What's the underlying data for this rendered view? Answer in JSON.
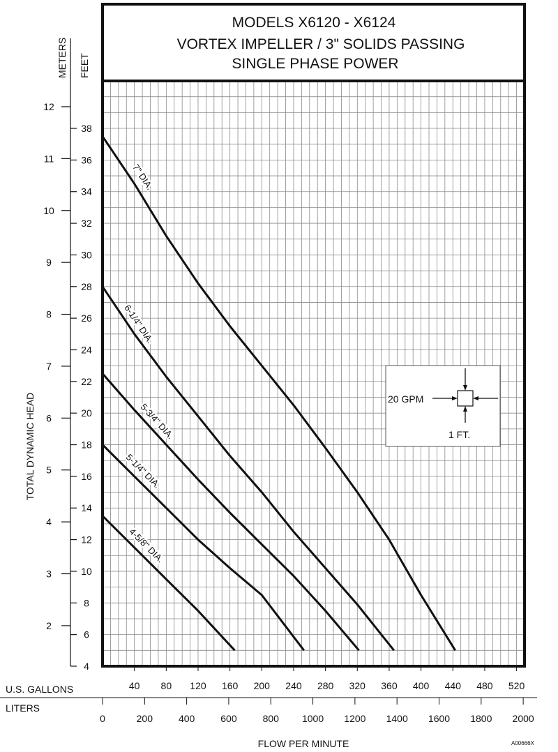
{
  "chart_data": {
    "type": "line",
    "title_lines": [
      "MODELS X6120 - X6124",
      "VORTEX IMPELLER / 3\" SOLIDS PASSING",
      "SINGLE PHASE POWER"
    ],
    "xlabel": "FLOW PER MINUTE",
    "ylabel": "TOTAL DYNAMIC HEAD",
    "x_units": {
      "primary": "U.S. GALLONS",
      "secondary": "LITERS"
    },
    "y_units": {
      "primary": "FEET",
      "secondary": "METERS"
    },
    "xlim": [
      0,
      530
    ],
    "ylim": [
      4,
      41
    ],
    "x_ticks": [
      40,
      80,
      120,
      160,
      200,
      240,
      280,
      320,
      360,
      400,
      440,
      480,
      520
    ],
    "x2_ticks": [
      0,
      200,
      400,
      600,
      800,
      1000,
      1200,
      1400,
      1600,
      1800,
      2000
    ],
    "y_ticks": [
      4,
      6,
      8,
      10,
      12,
      14,
      16,
      18,
      20,
      22,
      24,
      26,
      28,
      30,
      32,
      34,
      36,
      38
    ],
    "y2_ticks": [
      2,
      3,
      4,
      5,
      6,
      7,
      8,
      9,
      10,
      11,
      12
    ],
    "grid": true,
    "series": [
      {
        "name": "7\" DIA.",
        "x": [
          0,
          40,
          80,
          120,
          160,
          200,
          240,
          280,
          320,
          360,
          400,
          443
        ],
        "y": [
          37.5,
          34.5,
          31.2,
          28.2,
          25.5,
          23,
          20.5,
          17.8,
          15,
          12,
          8.5,
          5
        ]
      },
      {
        "name": "6-1/4\" DIA.",
        "x": [
          0,
          40,
          80,
          120,
          160,
          200,
          240,
          280,
          320,
          366
        ],
        "y": [
          28,
          25,
          22.3,
          19.8,
          17.3,
          15,
          12.5,
          10.2,
          7.9,
          5
        ]
      },
      {
        "name": "5-3/4\" DIA.",
        "x": [
          0,
          40,
          80,
          120,
          160,
          200,
          240,
          280,
          322
        ],
        "y": [
          22.5,
          20.2,
          18,
          15.8,
          13.7,
          11.7,
          9.7,
          7.5,
          5
        ]
      },
      {
        "name": "5-1/4\" DIA.",
        "x": [
          0,
          40,
          80,
          120,
          160,
          200,
          253
        ],
        "y": [
          18,
          16,
          14,
          12,
          10.2,
          8.5,
          5
        ]
      },
      {
        "name": "4-5/8\" DIA.",
        "x": [
          0,
          40,
          80,
          120,
          166
        ],
        "y": [
          13.5,
          11.5,
          9.5,
          7.5,
          5
        ]
      }
    ],
    "scale_box": {
      "horizontal": "20 GPM",
      "vertical": "1 FT."
    },
    "code": "A00666X"
  }
}
